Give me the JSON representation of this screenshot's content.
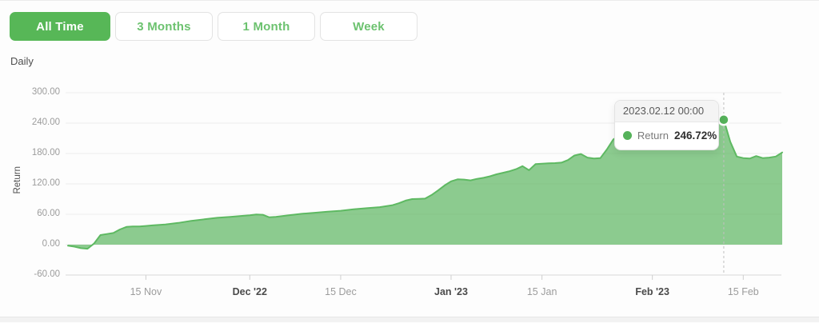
{
  "page": {
    "frequency_label": "Daily"
  },
  "toolbar": {
    "buttons": [
      {
        "label": "All Time",
        "active": true
      },
      {
        "label": "3 Months",
        "active": false
      },
      {
        "label": "1 Month",
        "active": false
      },
      {
        "label": "Week",
        "active": false
      }
    ]
  },
  "palette": {
    "accent_green": "#57b757",
    "line_green": "#5eb962",
    "fill_green": "rgba(96,183,100,0.72)",
    "marker_green": "#55b25a",
    "grid_line": "#ededed",
    "axis_line": "#d9d9d9",
    "tick_mark": "#cfcfcf",
    "crosshair": "#c0c0c0"
  },
  "chart_data": {
    "type": "area",
    "title": "",
    "xlabel": "",
    "ylabel": "Return",
    "grid": true,
    "ylim": [
      -60,
      300
    ],
    "x_range": [
      "2022-11-03",
      "2023-02-21"
    ],
    "y_ticks": [
      {
        "value": 300,
        "label": "300.00"
      },
      {
        "value": 240,
        "label": "240.00"
      },
      {
        "value": 180,
        "label": "180.00"
      },
      {
        "value": 120,
        "label": "120.00"
      },
      {
        "value": 60,
        "label": "60.00"
      },
      {
        "value": 0,
        "label": "0.00"
      },
      {
        "value": -60,
        "label": "-60.00"
      }
    ],
    "x_ticks": [
      {
        "date": "2022-11-15",
        "label": "15 Nov",
        "bold": false
      },
      {
        "date": "2022-12-01",
        "label": "Dec '22",
        "bold": true
      },
      {
        "date": "2022-12-15",
        "label": "15 Dec",
        "bold": false
      },
      {
        "date": "2023-01-01",
        "label": "Jan '23",
        "bold": true
      },
      {
        "date": "2023-01-15",
        "label": "15 Jan",
        "bold": false
      },
      {
        "date": "2023-02-01",
        "label": "Feb '23",
        "bold": true
      },
      {
        "date": "2023-02-15",
        "label": "15 Feb",
        "bold": false
      }
    ],
    "series": [
      {
        "name": "Return",
        "unit": "%",
        "points": [
          [
            "2022-11-03",
            -2
          ],
          [
            "2022-11-04",
            -4
          ],
          [
            "2022-11-05",
            -7
          ],
          [
            "2022-11-06",
            -8
          ],
          [
            "2022-11-07",
            2
          ],
          [
            "2022-11-08",
            19
          ],
          [
            "2022-11-09",
            21
          ],
          [
            "2022-11-10",
            23
          ],
          [
            "2022-11-11",
            30
          ],
          [
            "2022-11-12",
            35
          ],
          [
            "2022-11-13",
            36
          ],
          [
            "2022-11-14",
            36
          ],
          [
            "2022-11-15",
            37
          ],
          [
            "2022-11-16",
            38
          ],
          [
            "2022-11-18",
            40
          ],
          [
            "2022-11-20",
            43
          ],
          [
            "2022-11-22",
            47
          ],
          [
            "2022-11-24",
            50
          ],
          [
            "2022-11-26",
            53
          ],
          [
            "2022-11-28",
            55
          ],
          [
            "2022-11-30",
            57
          ],
          [
            "2022-12-01",
            58
          ],
          [
            "2022-12-02",
            59.5
          ],
          [
            "2022-12-03",
            59
          ],
          [
            "2022-12-04",
            54
          ],
          [
            "2022-12-05",
            55
          ],
          [
            "2022-12-07",
            58
          ],
          [
            "2022-12-09",
            61
          ],
          [
            "2022-12-11",
            63
          ],
          [
            "2022-12-13",
            65
          ],
          [
            "2022-12-15",
            67
          ],
          [
            "2022-12-17",
            70
          ],
          [
            "2022-12-19",
            72
          ],
          [
            "2022-12-21",
            74
          ],
          [
            "2022-12-23",
            78
          ],
          [
            "2022-12-24",
            82
          ],
          [
            "2022-12-25",
            87
          ],
          [
            "2022-12-26",
            90
          ],
          [
            "2022-12-27",
            90.5
          ],
          [
            "2022-12-28",
            91
          ],
          [
            "2022-12-29",
            98
          ],
          [
            "2022-12-30",
            107
          ],
          [
            "2022-12-31",
            117
          ],
          [
            "2023-01-01",
            125
          ],
          [
            "2023-01-02",
            129
          ],
          [
            "2023-01-03",
            128.5
          ],
          [
            "2023-01-04",
            127
          ],
          [
            "2023-01-05",
            130
          ],
          [
            "2023-01-06",
            132
          ],
          [
            "2023-01-07",
            135
          ],
          [
            "2023-01-08",
            139
          ],
          [
            "2023-01-09",
            142
          ],
          [
            "2023-01-10",
            145
          ],
          [
            "2023-01-11",
            149
          ],
          [
            "2023-01-12",
            155
          ],
          [
            "2023-01-13",
            147
          ],
          [
            "2023-01-14",
            159
          ],
          [
            "2023-01-15",
            160
          ],
          [
            "2023-01-16",
            160.5
          ],
          [
            "2023-01-17",
            161
          ],
          [
            "2023-01-18",
            162
          ],
          [
            "2023-01-19",
            167
          ],
          [
            "2023-01-20",
            176
          ],
          [
            "2023-01-21",
            179
          ],
          [
            "2023-01-22",
            172
          ],
          [
            "2023-01-23",
            170
          ],
          [
            "2023-01-24",
            171
          ],
          [
            "2023-01-25",
            188
          ],
          [
            "2023-01-26",
            208
          ],
          [
            "2023-01-27",
            216
          ],
          [
            "2023-01-29",
            221
          ],
          [
            "2023-02-01",
            226
          ],
          [
            "2023-02-04",
            231
          ],
          [
            "2023-02-07",
            236
          ],
          [
            "2023-02-10",
            242
          ],
          [
            "2023-02-12",
            246.72
          ],
          [
            "2023-02-13",
            203
          ],
          [
            "2023-02-14",
            174
          ],
          [
            "2023-02-15",
            171
          ],
          [
            "2023-02-16",
            170
          ],
          [
            "2023-02-17",
            175
          ],
          [
            "2023-02-18",
            171
          ],
          [
            "2023-02-19",
            172
          ],
          [
            "2023-02-20",
            174
          ],
          [
            "2023-02-21",
            182
          ]
        ]
      }
    ],
    "highlight": {
      "date": "2023-02-12",
      "value": 246.72
    },
    "tooltip": {
      "title": "2023.02.12 00:00",
      "series_label": "Return",
      "value_label": "246.72%"
    }
  }
}
